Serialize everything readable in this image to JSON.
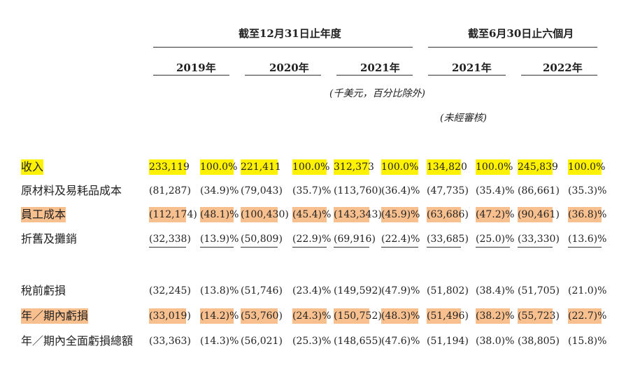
{
  "header": {
    "period_annual": "截至12月31日止年度",
    "period_six_months": "截至6月30日止六個月",
    "years": [
      "2019年",
      "2020年",
      "2021年",
      "2021年",
      "2022年"
    ],
    "unit_note": "(千美元，百分比除外)",
    "unaudited_note": "(未經審核)"
  },
  "rows": [
    {
      "label": "收入",
      "highlight": "yellow",
      "values": [
        "233,119",
        "100.0%",
        "221,411",
        "100.0%",
        "312,373",
        "100.0%",
        "134,820",
        "100.0%",
        "245,839",
        "100.0%"
      ]
    },
    {
      "label": "原材料及易耗品成本",
      "highlight": "",
      "values": [
        "(81,287)",
        "(34.9)%",
        "(79,043)",
        "(35.7)%",
        "(113,760)",
        "(36.4)%",
        "(47,735)",
        "(35.4)%",
        "(86,661)",
        "(35.3)%"
      ]
    },
    {
      "label": "員工成本",
      "highlight": "orange",
      "values": [
        "(112,174)",
        "(48.1)%",
        "(100,430)",
        "(45.4)%",
        "(143,343)",
        "(45.9)%",
        "(63,686)",
        "(47.2)%",
        "(90,461)",
        "(36.8)%"
      ]
    },
    {
      "label": "折舊及攤銷",
      "highlight": "",
      "values": [
        "(32,338)",
        "(13.9)%",
        "(50,809)",
        "(22.9)%",
        "(69,916)",
        "(22.4)%",
        "(33,685)",
        "(25.0)%",
        "(33,330)",
        "(13.6)%"
      ]
    },
    {
      "label": "稅前虧損",
      "highlight": "",
      "values": [
        "(32,245)",
        "(13.8)%",
        "(51,746)",
        "(23.4)%",
        "(149,592)",
        "(47.9)%",
        "(51,802)",
        "(38.4)%",
        "(51,705)",
        "(21.0)%"
      ]
    },
    {
      "label": "年／期內虧損",
      "highlight": "orange",
      "values": [
        "(33,019)",
        "(14.2)%",
        "(53,760)",
        "(24.3)%",
        "(150,752)",
        "(48.3)%",
        "(51,496)",
        "(38.2)%",
        "(55,723)",
        "(22.7)%"
      ]
    },
    {
      "label": "年／期內全面虧損總額",
      "highlight": "",
      "values": [
        "(33,363)",
        "(14.3)%",
        "(56,021)",
        "(25.3)%",
        "(148,655)",
        "(47.6)%",
        "(51,194)",
        "(38.0)%",
        "(38,805)",
        "(15.8)%"
      ]
    }
  ],
  "colors": {
    "highlight_yellow": "#fff200",
    "highlight_orange": "#f9c08f"
  }
}
